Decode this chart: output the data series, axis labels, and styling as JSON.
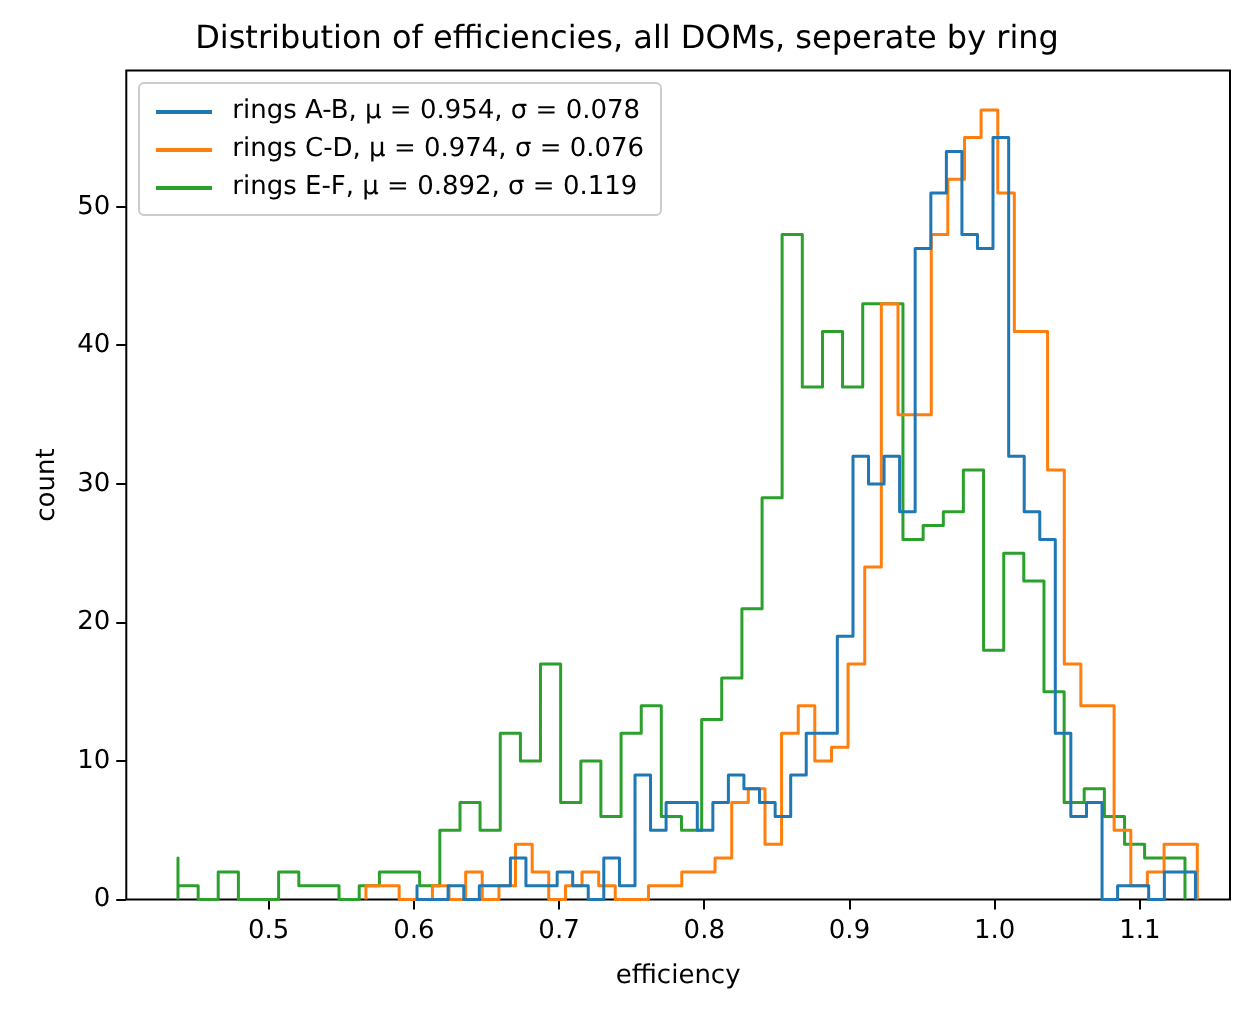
{
  "chart_data": {
    "type": "step",
    "title": "Distribution of efficiencies, all DOMs, seperate by ring",
    "xlabel": "efficiency",
    "ylabel": "count",
    "xlim": [
      0.402,
      1.162
    ],
    "ylim": [
      0,
      59.85
    ],
    "xticks": [
      0.5,
      0.6,
      0.7,
      0.8,
      0.9,
      {
        "value": 1,
        "label": "1.0"
      },
      1.1
    ],
    "yticks": [
      0,
      10,
      20,
      30,
      40,
      50
    ],
    "grid": false,
    "legend": "top left",
    "series": [
      {
        "name": "rings A-B, μ = 0.954, σ = 0.078",
        "color": "#1f77b4",
        "x": [
          0.6022,
          0.6022,
          0.6129,
          0.6236,
          0.6344,
          0.6451,
          0.6558,
          0.6665,
          0.6772,
          0.688,
          0.6987,
          0.7094,
          0.7201,
          0.7308,
          0.7416,
          0.7523,
          0.763,
          0.7737,
          0.7844,
          0.7952,
          0.8059,
          0.8166,
          0.8273,
          0.838,
          0.8488,
          0.8595,
          0.8702,
          0.8809,
          0.8916,
          0.9024,
          0.9131,
          0.9238,
          0.9345,
          0.9452,
          0.956,
          0.9667,
          0.9774,
          0.9881,
          0.9988,
          1.0096,
          1.0203,
          1.031,
          1.0417,
          1.0524,
          1.0632,
          1.0739,
          1.0846,
          1.0953,
          1.106,
          1.1168,
          1.1275,
          1.1382,
          1.1382
        ],
        "values": [
          0,
          1,
          0,
          0,
          1,
          0,
          1,
          1,
          3,
          1,
          1,
          2,
          1,
          0,
          3,
          1,
          9,
          5,
          7,
          7,
          5,
          7,
          9,
          8,
          7,
          6,
          9,
          12,
          12,
          19,
          32,
          30,
          32,
          28,
          47,
          51,
          54,
          48,
          47,
          55,
          32,
          28,
          26,
          12,
          6,
          7,
          0,
          1,
          1,
          0,
          2,
          2,
          0
        ]
      },
      {
        "name": "rings C-D, μ = 0.974, σ = 0.076",
        "color": "#ff7f0e",
        "x": [
          0.567,
          0.567,
          0.5784,
          0.5899,
          0.6013,
          0.6128,
          0.6242,
          0.6357,
          0.6471,
          0.6586,
          0.67,
          0.6815,
          0.6929,
          0.7044,
          0.7158,
          0.7273,
          0.7387,
          0.7502,
          0.7616,
          0.7731,
          0.7845,
          0.796,
          0.8074,
          0.8189,
          0.8303,
          0.8418,
          0.8532,
          0.8647,
          0.8761,
          0.8876,
          0.899,
          0.9105,
          0.9219,
          0.9334,
          0.9448,
          0.9563,
          0.9677,
          0.9792,
          0.9906,
          1.0021,
          1.0135,
          1.025,
          1.0364,
          1.0479,
          1.0593,
          1.0708,
          1.0822,
          1.0937,
          1.1051,
          1.1166,
          1.128,
          1.1395,
          1.1395
        ],
        "values": [
          0,
          1,
          1,
          1,
          0,
          0,
          1,
          0,
          2,
          0,
          1,
          4,
          2,
          0,
          1,
          2,
          1,
          0,
          0,
          1,
          1,
          2,
          2,
          3,
          7,
          8,
          4,
          12,
          14,
          10,
          11,
          17,
          24,
          43,
          35,
          35,
          48,
          52,
          55,
          57,
          51,
          41,
          41,
          31,
          17,
          14,
          14,
          5,
          1,
          2,
          4,
          4,
          0
        ]
      },
      {
        "name": "rings E-F, μ = 0.892, σ = 0.119",
        "color": "#2ca02c",
        "x": [
          0.4376,
          0.4376,
          0.4515,
          0.4653,
          0.4792,
          0.4931,
          0.5069,
          0.5208,
          0.5347,
          0.5485,
          0.5624,
          0.5763,
          0.5901,
          0.604,
          0.6179,
          0.6318,
          0.6456,
          0.6595,
          0.6734,
          0.6872,
          0.7011,
          0.715,
          0.7288,
          0.7427,
          0.7566,
          0.7704,
          0.7843,
          0.7982,
          0.812,
          0.8259,
          0.8398,
          0.8536,
          0.8675,
          0.8814,
          0.8952,
          0.9091,
          0.923,
          0.9368,
          0.9507,
          0.9646,
          0.9784,
          0.9923,
          1.0062,
          1.02,
          1.0339,
          1.0478,
          1.0616,
          1.0755,
          1.0894,
          1.1032,
          1.1171,
          1.131,
          1.131
        ],
        "values": [
          0,
          3,
          1,
          0,
          2,
          0,
          0,
          2,
          1,
          1,
          0,
          1,
          2,
          2,
          1,
          5,
          7,
          5,
          12,
          10,
          17,
          7,
          10,
          6,
          12,
          14,
          6,
          5,
          13,
          16,
          21,
          29,
          48,
          37,
          41,
          37,
          43,
          43,
          26,
          27,
          28,
          31,
          18,
          25,
          23,
          15,
          7,
          8,
          6,
          4,
          3,
          3,
          0
        ]
      }
    ]
  }
}
